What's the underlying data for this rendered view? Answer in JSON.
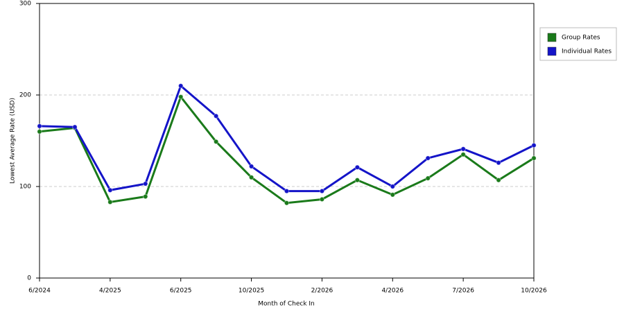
{
  "chart_data": {
    "type": "line",
    "x_label": "Month of Check In",
    "y_label": "Lowest Average Rate (USD)",
    "categories": [
      "6/2024",
      null,
      "4/2025",
      null,
      "6/2025",
      null,
      "10/2025",
      null,
      "2/2026",
      null,
      "4/2026",
      null,
      "7/2026",
      null,
      "10/2026"
    ],
    "series": [
      {
        "name": "Group Rates",
        "color": "#1a7a1a",
        "values": [
          160,
          164,
          83,
          89,
          198,
          149,
          110,
          82,
          86,
          107,
          91,
          109,
          135,
          107,
          131
        ]
      },
      {
        "name": "Individual Rates",
        "color": "#1414c8",
        "values": [
          166,
          165,
          96,
          103,
          210,
          177,
          122,
          95,
          95,
          121,
          100,
          131,
          141,
          126,
          145
        ]
      }
    ],
    "ylim": [
      0,
      300
    ],
    "yticks": [
      0,
      100,
      200,
      300
    ],
    "grid": true,
    "legend": "right"
  }
}
